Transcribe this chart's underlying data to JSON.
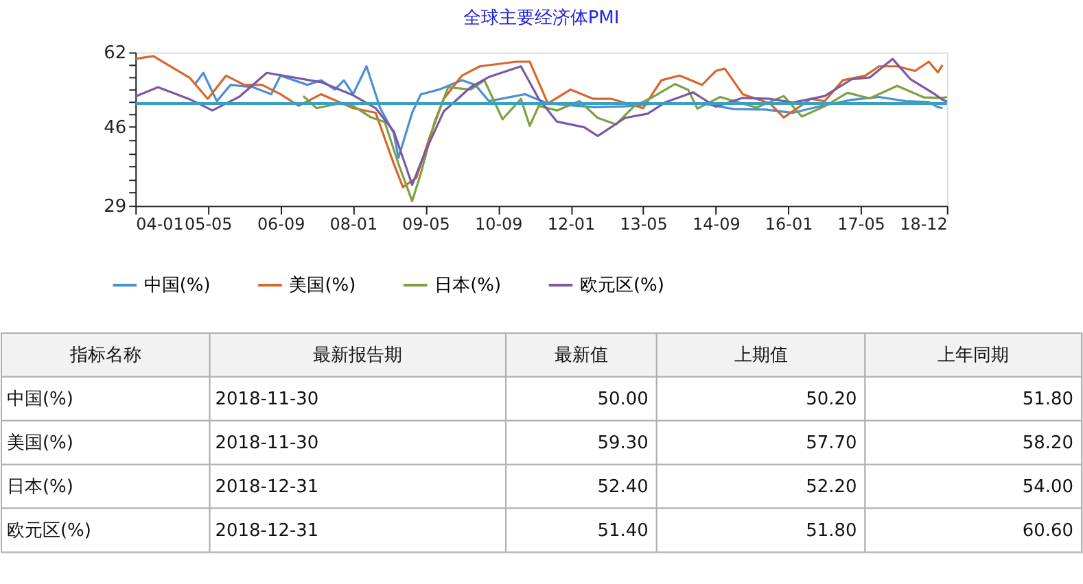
{
  "chart_data": {
    "type": "line",
    "title": "全球主要经济体PMI",
    "legend": "bottom",
    "line_style": "solid",
    "marker": "none",
    "grid": false,
    "xlim": [
      "2004-01",
      "2018-12"
    ],
    "xticks": [
      {
        "value": "2004-01",
        "label": "04-01"
      },
      {
        "value": "2005-05",
        "label": "05-05"
      },
      {
        "value": "2006-09",
        "label": "06-09"
      },
      {
        "value": "2008-01",
        "label": "08-01"
      },
      {
        "value": "2009-05",
        "label": "09-05"
      },
      {
        "value": "2010-09",
        "label": "10-09"
      },
      {
        "value": "2012-01",
        "label": "12-01"
      },
      {
        "value": "2013-05",
        "label": "13-05"
      },
      {
        "value": "2014-09",
        "label": "14-09"
      },
      {
        "value": "2016-01",
        "label": "16-01"
      },
      {
        "value": "2017-05",
        "label": "17-05"
      },
      {
        "value": "2018-12",
        "label": "18-12"
      }
    ],
    "ylim": [
      29,
      62
    ],
    "yticks": [
      29,
      {
        "value": 31.8,
        "label": null
      },
      {
        "value": 34.7,
        "label": null
      },
      {
        "value": 37.5,
        "label": null
      },
      {
        "value": 40.3,
        "label": null
      },
      {
        "value": 43.2,
        "label": null
      },
      46,
      {
        "value": 48.7,
        "label": null
      },
      {
        "value": 51.3,
        "label": null
      },
      {
        "value": 54.0,
        "label": null
      },
      {
        "value": 56.7,
        "label": null
      },
      {
        "value": 59.3,
        "label": null
      },
      62
    ],
    "ref_lines": [
      {
        "axis": "y",
        "value": 51,
        "color": "#3a9fc0"
      }
    ],
    "series": [
      {
        "name": "中国(%)",
        "color": "#4a8fd4",
        "x": [
          "2005-02",
          "2005-04",
          "2005-07",
          "2005-10",
          "2006-03",
          "2006-07",
          "2006-09",
          "2007-03",
          "2007-06",
          "2007-09",
          "2007-11",
          "2008-01",
          "2008-04",
          "2008-07",
          "2008-10",
          "2008-11",
          "2009-02",
          "2009-04",
          "2009-08",
          "2010-01",
          "2010-04",
          "2010-07",
          "2011-03",
          "2011-08",
          "2012-06",
          "2013-01",
          "2013-08",
          "2014-06",
          "2015-01",
          "2015-08",
          "2016-02",
          "2016-08",
          "2017-03",
          "2017-09",
          "2018-03",
          "2018-08",
          "2018-10",
          "2018-11"
        ],
        "values": [
          55,
          57.6,
          51.5,
          55,
          54.5,
          53,
          57,
          55,
          56,
          54,
          56,
          53,
          59,
          50,
          44.6,
          39.3,
          49,
          53,
          54,
          56,
          55,
          51.5,
          53,
          51,
          50.2,
          50.4,
          51,
          51,
          49.8,
          49.7,
          49,
          50.4,
          51.8,
          52.4,
          51.5,
          51.3,
          50.2,
          50.0
        ]
      },
      {
        "name": "美国(%)",
        "color": "#d9652b",
        "x": [
          "2004-01",
          "2004-05",
          "2005-01",
          "2005-05",
          "2005-09",
          "2006-01",
          "2006-05",
          "2006-09",
          "2007-01",
          "2007-06",
          "2008-01",
          "2008-06",
          "2008-10",
          "2008-12",
          "2009-03",
          "2009-06",
          "2009-09",
          "2010-01",
          "2010-05",
          "2011-01",
          "2011-04",
          "2011-08",
          "2012-01",
          "2012-06",
          "2012-10",
          "2013-05",
          "2013-09",
          "2014-01",
          "2014-06",
          "2014-09",
          "2014-11",
          "2015-03",
          "2015-09",
          "2015-12",
          "2016-06",
          "2016-09",
          "2017-01",
          "2017-06",
          "2017-09",
          "2018-01",
          "2018-05",
          "2018-08",
          "2018-10",
          "2018-11"
        ],
        "values": [
          60.6,
          61.2,
          56.5,
          52,
          57,
          55,
          55,
          53,
          50.5,
          53,
          50,
          49,
          38,
          33,
          35,
          44,
          52,
          57,
          59,
          60,
          60,
          51,
          54,
          52,
          52,
          50,
          56,
          57,
          55,
          58,
          58.5,
          53,
          51,
          48,
          52,
          51.5,
          56,
          57,
          59,
          59,
          58,
          60,
          57.7,
          59.3
        ]
      },
      {
        "name": "日本(%)",
        "color": "#7ea040",
        "x": [
          "2007-02",
          "2007-05",
          "2007-10",
          "2008-01",
          "2008-05",
          "2008-08",
          "2008-11",
          "2009-02",
          "2009-04",
          "2009-07",
          "2009-10",
          "2010-03",
          "2010-06",
          "2010-10",
          "2011-02",
          "2011-04",
          "2011-06",
          "2011-10",
          "2012-03",
          "2012-07",
          "2012-11",
          "2013-03",
          "2013-07",
          "2013-12",
          "2014-03",
          "2014-05",
          "2014-10",
          "2015-06",
          "2015-12",
          "2016-04",
          "2016-09",
          "2017-02",
          "2017-07",
          "2018-01",
          "2018-07",
          "2018-11",
          "2018-12"
        ],
        "values": [
          52.6,
          50,
          51,
          50.5,
          48,
          47,
          38,
          30,
          36,
          47,
          54.5,
          54,
          56,
          47.6,
          52,
          46.2,
          50.5,
          49.5,
          51.5,
          47.9,
          46.5,
          50.4,
          52.3,
          55.2,
          53.9,
          49.9,
          52.4,
          50.1,
          52.6,
          48.2,
          50.4,
          53.3,
          52.1,
          54.8,
          52.3,
          52.2,
          52.4
        ]
      },
      {
        "name": "欧元区(%)",
        "color": "#7a58a6",
        "x": [
          "2004-01",
          "2004-06",
          "2005-01",
          "2005-06",
          "2005-12",
          "2006-06",
          "2007-06",
          "2008-01",
          "2008-06",
          "2008-10",
          "2009-02",
          "2009-05",
          "2009-09",
          "2010-03",
          "2010-07",
          "2011-02",
          "2011-06",
          "2011-10",
          "2012-04",
          "2012-07",
          "2013-01",
          "2013-06",
          "2013-10",
          "2014-04",
          "2014-09",
          "2015-03",
          "2015-09",
          "2016-02",
          "2016-09",
          "2017-03",
          "2017-07",
          "2017-12",
          "2018-04",
          "2018-09",
          "2018-11",
          "2018-12"
        ],
        "values": [
          52.5,
          54.5,
          51.9,
          49.5,
          52.5,
          57.6,
          55.6,
          52.8,
          50,
          45,
          33.5,
          40.7,
          49.3,
          54.5,
          56.7,
          59,
          52,
          47.1,
          45.9,
          44,
          47.9,
          48.8,
          51.3,
          53.4,
          50.3,
          52.2,
          52,
          51.2,
          52.6,
          56.2,
          56.6,
          60.6,
          56.2,
          53.2,
          51.8,
          51.4
        ]
      }
    ],
    "annotations": [
      "指标名称",
      "最新报告期",
      "最新值",
      "上期值",
      "上年同期",
      "中国(%)",
      "2018-11-30",
      "50.00",
      "50.20",
      "51.80",
      "美国(%)",
      "2018-11-30",
      "59.30",
      "57.70",
      "58.20",
      "日本(%)",
      "2018-12-31",
      "52.40",
      "52.20",
      "54.00",
      "欧元区(%)",
      "2018-12-31",
      "51.40",
      "51.80",
      "60.60"
    ]
  }
}
